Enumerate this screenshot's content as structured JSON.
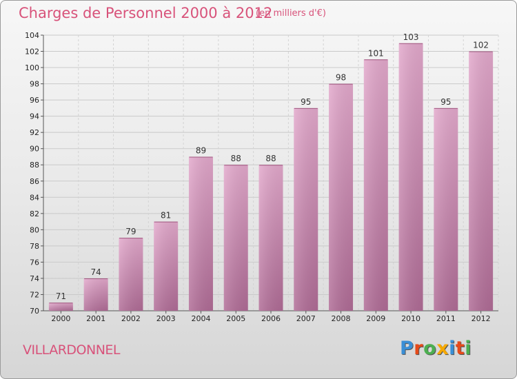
{
  "title": "Charges de Personnel 2000 à 2012",
  "subtitle": "(en milliers d'€)",
  "town": "VILLARDONNEL",
  "logo": {
    "text": "Proxiti",
    "letter_colors": [
      "#3a8fd6",
      "#e64a19",
      "#4caf50",
      "#f6a800",
      "#3a8fd6",
      "#e64a19",
      "#4caf50"
    ]
  },
  "colors": {
    "bar_top": "#e3a9cc",
    "bar_bottom": "#b06c96",
    "text_accent": "#d8527a"
  },
  "chart_data": {
    "type": "bar",
    "categories": [
      "2000",
      "2001",
      "2002",
      "2003",
      "2004",
      "2005",
      "2006",
      "2007",
      "2008",
      "2009",
      "2010",
      "2011",
      "2012"
    ],
    "values": [
      71,
      74,
      79,
      81,
      89,
      88,
      88,
      95,
      98,
      101,
      103,
      95,
      102
    ],
    "ylim": [
      70,
      104
    ],
    "yticks": [
      70,
      72,
      74,
      76,
      78,
      80,
      82,
      84,
      86,
      88,
      90,
      92,
      94,
      96,
      98,
      100,
      102,
      104
    ],
    "grid": true
  }
}
